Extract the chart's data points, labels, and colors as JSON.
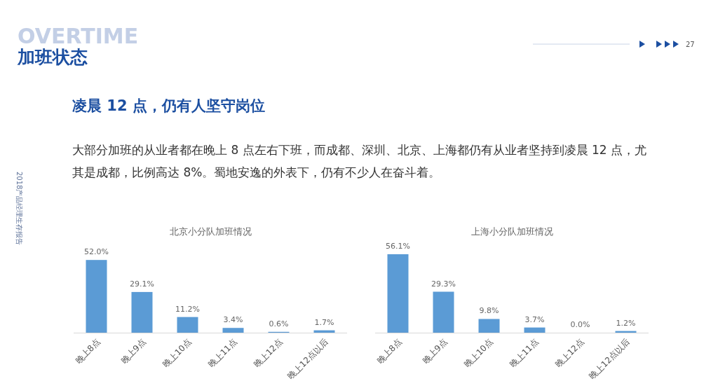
{
  "chart_data": [
    {
      "type": "other",
      "title": "加班状态",
      "subtitle": "凌晨 12 点，仍有人坚守岗位",
      "annotations": [
        "OVERTIME",
        "27",
        "大部分加班的从业者都在晚上 8 点左右下班，而成都、深圳、北京、上海都仍有从业者坚持到凌晨 12 点，尤其是成都，比例高达 8%。蜀地安逸的外表下，仍有不少人在奋斗着。",
        "2018产品经理生存报告"
      ]
    },
    {
      "type": "bar",
      "title": "北京小分队加班情况",
      "categories": [
        "晚上8点",
        "晚上9点",
        "晚上10点",
        "晚上11点",
        "晚上12点",
        "晚上12点以后"
      ],
      "values": [
        52.0,
        29.1,
        11.2,
        3.4,
        0.6,
        1.7
      ],
      "value_labels": [
        "52.0%",
        "29.1%",
        "11.2%",
        "3.4%",
        "0.6%",
        "1.7%"
      ],
      "color": "#5b9bd5"
    },
    {
      "type": "bar",
      "title": "上海小分队加班情况",
      "categories": [
        "晚上8点",
        "晚上9点",
        "晚上10点",
        "晚上11点",
        "晚上12点",
        "晚上12点以后"
      ],
      "values": [
        56.1,
        29.3,
        9.8,
        3.7,
        0.0,
        1.2
      ],
      "value_labels": [
        "56.1%",
        "29.3%",
        "9.8%",
        "3.7%",
        "0.0%",
        "1.2%"
      ],
      "color": "#5b9bd5"
    }
  ]
}
